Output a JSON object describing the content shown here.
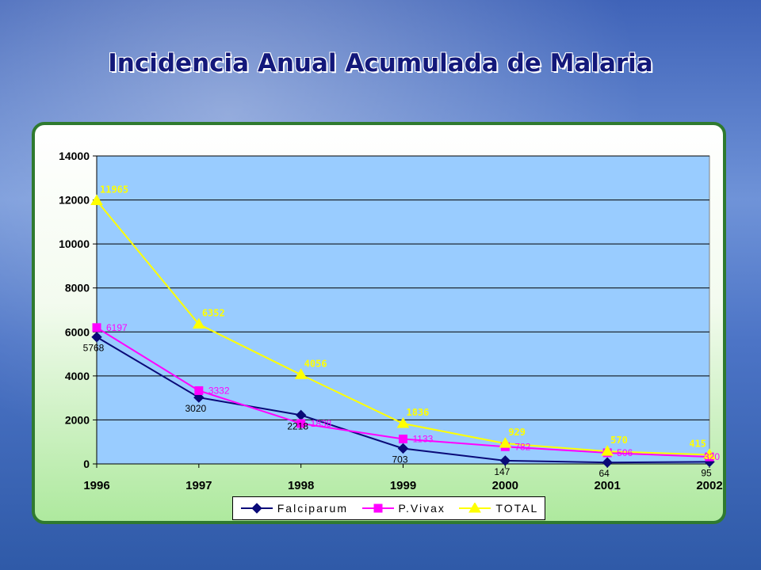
{
  "title": "Incidencia Anual Acumulada de Malaria",
  "chart_data": {
    "type": "line",
    "title": "Incidencia Anual Acumulada de Malaria",
    "x": [
      "1996",
      "1997",
      "1998",
      "1999",
      "2000",
      "2001",
      "2002"
    ],
    "ylim": [
      0,
      14000
    ],
    "yticks": [
      0,
      2000,
      4000,
      6000,
      8000,
      10000,
      12000,
      14000
    ],
    "grid": true,
    "legend_position": "bottom",
    "series": [
      {
        "name": "Falciparum",
        "values": [
          5768,
          3020,
          2218,
          703,
          147,
          64,
          95
        ],
        "color": "#0a0a78",
        "marker": "diamond"
      },
      {
        "name": "P.Vivax",
        "values": [
          6197,
          3332,
          1838,
          1133,
          782,
          506,
          320
        ],
        "color": "#ff00ff",
        "marker": "square"
      },
      {
        "name": "TOTAL",
        "values": [
          11965,
          6352,
          4056,
          1836,
          929,
          570,
          415
        ],
        "color": "#ffff00",
        "marker": "triangle"
      }
    ],
    "plot_background": "#99ccff"
  }
}
